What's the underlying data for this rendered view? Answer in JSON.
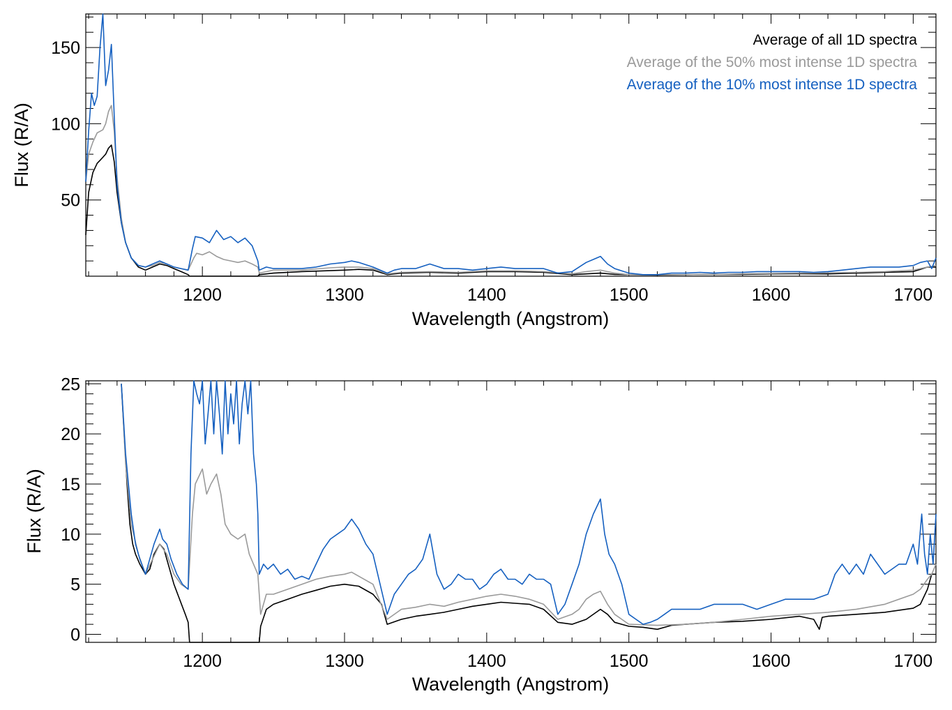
{
  "figure_title": "",
  "colors": {
    "all": "#000000",
    "top50": "#9a9a9a",
    "top10": "#1560c0"
  },
  "legend": {
    "all": "Average of all 1D spectra",
    "top50": "Average of the 50% most intense 1D spectra",
    "top10": "Average of the 10% most intense 1D spectra"
  },
  "chart_data": [
    {
      "type": "line",
      "title": "",
      "xlabel": "Wavelength (Angstrom)",
      "ylabel": "Flux (R/A)",
      "xlim": [
        1118,
        1716
      ],
      "ylim": [
        0,
        172
      ],
      "xticks": [
        1200,
        1300,
        1400,
        1500,
        1600,
        1700
      ],
      "yticks": [
        50,
        100,
        150
      ],
      "legend_position": "top-right",
      "series": [
        {
          "key": "all",
          "name": "Average of all 1D spectra",
          "color": "#000000",
          "x": [
            1118,
            1120,
            1123,
            1126,
            1128,
            1130,
            1132,
            1134,
            1136,
            1138,
            1140,
            1143,
            1146,
            1150,
            1155,
            1160,
            1165,
            1170,
            1175,
            1180,
            1185,
            1190,
            1191,
            1200,
            1210,
            1220,
            1230,
            1239,
            1240,
            1250,
            1270,
            1300,
            1310,
            1320,
            1330,
            1340,
            1360,
            1380,
            1400,
            1420,
            1440,
            1460,
            1480,
            1490,
            1500,
            1520,
            1540,
            1560,
            1580,
            1600,
            1620,
            1640,
            1660,
            1680,
            1700,
            1705,
            1710,
            1716
          ],
          "y": [
            27,
            55,
            68,
            74,
            76,
            78,
            80,
            84,
            86,
            75,
            55,
            35,
            22,
            12,
            6,
            4,
            6,
            8,
            7,
            5,
            3,
            1,
            0,
            0,
            0,
            0,
            0,
            0,
            1,
            2,
            3,
            4,
            4.5,
            4,
            1,
            2,
            2.5,
            2,
            3,
            3,
            2.5,
            1,
            2,
            1.2,
            1,
            0.8,
            1,
            1.2,
            1.2,
            1.5,
            1.6,
            1.5,
            2,
            2.5,
            3,
            4.5,
            6,
            6
          ]
        },
        {
          "key": "top50",
          "name": "Average of the 50% most intense 1D spectra",
          "color": "#9a9a9a",
          "x": [
            1118,
            1120,
            1123,
            1126,
            1128,
            1130,
            1132,
            1134,
            1136,
            1138,
            1140,
            1143,
            1146,
            1150,
            1155,
            1160,
            1165,
            1170,
            1175,
            1180,
            1185,
            1190,
            1194,
            1196,
            1200,
            1205,
            1210,
            1215,
            1220,
            1225,
            1230,
            1235,
            1239,
            1240,
            1250,
            1270,
            1290,
            1300,
            1310,
            1320,
            1330,
            1340,
            1360,
            1380,
            1400,
            1420,
            1440,
            1460,
            1470,
            1480,
            1490,
            1500,
            1520,
            1540,
            1560,
            1580,
            1600,
            1620,
            1640,
            1660,
            1680,
            1700,
            1710,
            1716
          ],
          "y": [
            62,
            80,
            88,
            94,
            95,
            96,
            100,
            108,
            112,
            95,
            65,
            38,
            22,
            12,
            7,
            6,
            7,
            9,
            8,
            6,
            5,
            4,
            12,
            15,
            14,
            16,
            13,
            11,
            10,
            9,
            10,
            8,
            6,
            2,
            4,
            4,
            5.5,
            6,
            6,
            5,
            1.5,
            2.5,
            3,
            2.5,
            3.5,
            3.5,
            3,
            1.5,
            3,
            4,
            2,
            1,
            1,
            1,
            1.2,
            1.5,
            1.8,
            2,
            2.2,
            2.5,
            3,
            4,
            6,
            7
          ]
        },
        {
          "key": "top10",
          "name": "Average of the 10% most intense 1D spectra",
          "color": "#1560c0",
          "x": [
            1118,
            1120,
            1122,
            1124,
            1126,
            1128,
            1130,
            1132,
            1134,
            1136,
            1138,
            1140,
            1143,
            1146,
            1150,
            1155,
            1160,
            1165,
            1170,
            1175,
            1180,
            1185,
            1190,
            1193,
            1195,
            1200,
            1205,
            1210,
            1215,
            1220,
            1225,
            1230,
            1235,
            1239,
            1240,
            1245,
            1250,
            1260,
            1270,
            1280,
            1290,
            1300,
            1305,
            1310,
            1320,
            1330,
            1335,
            1340,
            1350,
            1360,
            1370,
            1380,
            1390,
            1400,
            1410,
            1420,
            1430,
            1440,
            1450,
            1460,
            1465,
            1470,
            1475,
            1480,
            1485,
            1490,
            1500,
            1510,
            1520,
            1530,
            1540,
            1550,
            1560,
            1570,
            1580,
            1590,
            1600,
            1610,
            1620,
            1630,
            1640,
            1650,
            1660,
            1670,
            1680,
            1690,
            1700,
            1705,
            1710,
            1713,
            1716
          ],
          "y": [
            62,
            95,
            120,
            112,
            118,
            150,
            172,
            125,
            135,
            152,
            105,
            60,
            35,
            22,
            12,
            7,
            6,
            8,
            10,
            8,
            6,
            5,
            4,
            18,
            26,
            25,
            22,
            30,
            24,
            26,
            22,
            25,
            20,
            10,
            4,
            6,
            5,
            5,
            5,
            6,
            8,
            9,
            10,
            9,
            6,
            2,
            4,
            5,
            5,
            8,
            5,
            5,
            4,
            5,
            6,
            5,
            5,
            5,
            2,
            3,
            6,
            9,
            11,
            13,
            8,
            5,
            2,
            1,
            1,
            2,
            2,
            2.5,
            2,
            2.5,
            2.5,
            3,
            3,
            3,
            3,
            2.5,
            3,
            4,
            5,
            6,
            6,
            6,
            7,
            9,
            10,
            5,
            12
          ]
        }
      ]
    },
    {
      "type": "line",
      "title": "",
      "xlabel": "Wavelength (Angstrom)",
      "ylabel": "Flux (R/A)",
      "xlim": [
        1118,
        1716
      ],
      "ylim": [
        -0.8,
        25.3
      ],
      "xticks": [
        1200,
        1300,
        1400,
        1500,
        1600,
        1700
      ],
      "yticks": [
        0,
        5,
        10,
        15,
        20,
        25
      ],
      "series": [
        {
          "key": "all",
          "name": "Average of all 1D spectra",
          "color": "#000000",
          "x": [
            1143,
            1145,
            1147,
            1149,
            1151,
            1153,
            1156,
            1160,
            1163,
            1166,
            1170,
            1173,
            1176,
            1180,
            1184,
            1188,
            1190,
            1191,
            1240,
            1241,
            1245,
            1250,
            1260,
            1270,
            1280,
            1290,
            1300,
            1310,
            1320,
            1326,
            1330,
            1340,
            1350,
            1360,
            1370,
            1380,
            1390,
            1400,
            1410,
            1420,
            1430,
            1440,
            1450,
            1460,
            1470,
            1480,
            1485,
            1490,
            1500,
            1510,
            1520,
            1530,
            1540,
            1560,
            1580,
            1600,
            1620,
            1630,
            1634,
            1636,
            1640,
            1660,
            1680,
            1700,
            1705,
            1710,
            1713,
            1716
          ],
          "y": [
            25,
            20,
            15,
            11,
            9,
            8,
            7,
            6,
            6.5,
            8,
            9,
            8.5,
            7,
            5,
            3.5,
            2,
            1.2,
            -0.8,
            -0.8,
            0.8,
            2.5,
            3,
            3.5,
            4,
            4.4,
            4.8,
            5,
            4.8,
            4,
            3,
            1,
            1.5,
            1.8,
            2,
            2.2,
            2.5,
            2.8,
            3,
            3.2,
            3.1,
            3,
            2.5,
            1.2,
            1,
            1.5,
            2.5,
            2,
            1.2,
            0.8,
            0.7,
            0.5,
            0.9,
            1,
            1.2,
            1.3,
            1.5,
            1.8,
            1.5,
            0.5,
            1.7,
            1.8,
            2,
            2.2,
            2.6,
            3,
            4.5,
            6,
            6
          ]
        },
        {
          "key": "top50",
          "name": "Average of the 50% most intense 1D spectra",
          "color": "#9a9a9a",
          "x": [
            1143,
            1146,
            1150,
            1155,
            1160,
            1165,
            1170,
            1175,
            1180,
            1185,
            1190,
            1193,
            1195,
            1200,
            1203,
            1206,
            1210,
            1213,
            1216,
            1220,
            1225,
            1230,
            1233,
            1236,
            1239,
            1241,
            1245,
            1250,
            1260,
            1270,
            1280,
            1290,
            1300,
            1305,
            1310,
            1320,
            1330,
            1340,
            1350,
            1360,
            1370,
            1380,
            1390,
            1400,
            1410,
            1420,
            1430,
            1440,
            1450,
            1460,
            1465,
            1470,
            1475,
            1480,
            1485,
            1490,
            1500,
            1520,
            1540,
            1560,
            1580,
            1600,
            1620,
            1640,
            1660,
            1680,
            1700,
            1705,
            1710,
            1713,
            1716
          ],
          "y": [
            25,
            17,
            11,
            8,
            6,
            7.5,
            9,
            8,
            6,
            5,
            4.5,
            12,
            15,
            16.5,
            14,
            15,
            16,
            14,
            11,
            10,
            9.5,
            10,
            8,
            7,
            6,
            2,
            4,
            4,
            4.5,
            5,
            5.5,
            5.8,
            6,
            6.2,
            5.8,
            5,
            1.5,
            2.5,
            2.7,
            3,
            2.8,
            3.2,
            3.5,
            3.8,
            4,
            3.8,
            3.5,
            3,
            1.5,
            2,
            2.5,
            3.5,
            4,
            4.3,
            3,
            2,
            1,
            0.9,
            1,
            1.2,
            1.5,
            1.8,
            2,
            2.2,
            2.5,
            3,
            4,
            4.5,
            5.5,
            6,
            7
          ]
        },
        {
          "key": "top10",
          "name": "Average of the 10% most intense 1D spectra",
          "color": "#1560c0",
          "x": [
            1143,
            1146,
            1150,
            1153,
            1156,
            1160,
            1163,
            1166,
            1170,
            1172,
            1175,
            1178,
            1182,
            1186,
            1190,
            1192,
            1194,
            1196,
            1198,
            1200,
            1202,
            1204,
            1206,
            1208,
            1210,
            1212,
            1214,
            1216,
            1218,
            1220,
            1222,
            1224,
            1226,
            1228,
            1230,
            1232,
            1234,
            1236,
            1238,
            1239,
            1240,
            1243,
            1246,
            1250,
            1255,
            1260,
            1265,
            1270,
            1275,
            1280,
            1285,
            1290,
            1295,
            1300,
            1305,
            1310,
            1315,
            1320,
            1325,
            1330,
            1335,
            1340,
            1345,
            1350,
            1355,
            1360,
            1365,
            1370,
            1375,
            1380,
            1385,
            1390,
            1395,
            1400,
            1405,
            1410,
            1415,
            1420,
            1425,
            1430,
            1435,
            1440,
            1445,
            1450,
            1455,
            1460,
            1465,
            1470,
            1475,
            1480,
            1483,
            1486,
            1490,
            1495,
            1500,
            1505,
            1510,
            1515,
            1520,
            1525,
            1530,
            1540,
            1550,
            1560,
            1570,
            1580,
            1590,
            1600,
            1610,
            1620,
            1630,
            1640,
            1645,
            1650,
            1655,
            1660,
            1665,
            1670,
            1675,
            1680,
            1685,
            1690,
            1695,
            1700,
            1703,
            1706,
            1708,
            1710,
            1712,
            1714,
            1716
          ],
          "y": [
            25,
            18,
            12,
            9,
            7.5,
            6,
            7.5,
            9,
            10.5,
            9.5,
            9,
            7.5,
            6,
            5,
            4.5,
            18,
            25.3,
            24,
            23,
            25.3,
            19,
            22,
            25.3,
            20,
            25.3,
            22,
            18,
            25.3,
            20,
            24,
            21,
            25.3,
            19,
            23,
            25.3,
            22,
            25.3,
            18,
            15,
            12,
            6,
            7,
            6.5,
            7,
            6,
            6.5,
            5.5,
            5.8,
            5.5,
            7,
            8.5,
            9.5,
            10,
            10.5,
            11.5,
            10.5,
            9,
            8,
            5,
            2,
            4,
            5,
            6,
            6.5,
            7.5,
            10,
            6,
            4.5,
            5,
            6,
            5.5,
            5.5,
            4.5,
            5,
            6,
            6.5,
            5.5,
            5.5,
            5,
            6,
            5.5,
            5.5,
            5,
            2,
            3,
            5,
            7,
            10,
            12,
            13.5,
            10,
            8,
            7,
            5,
            2,
            1.5,
            1,
            1.2,
            1.5,
            2,
            2.5,
            2.5,
            2.5,
            3,
            3,
            3,
            2.5,
            3,
            3.5,
            3.5,
            3.5,
            4,
            6,
            7,
            6,
            7,
            6,
            8,
            7,
            6,
            6.5,
            7,
            7,
            9,
            7,
            12,
            8,
            6,
            10,
            7,
            12
          ]
        }
      ]
    }
  ]
}
